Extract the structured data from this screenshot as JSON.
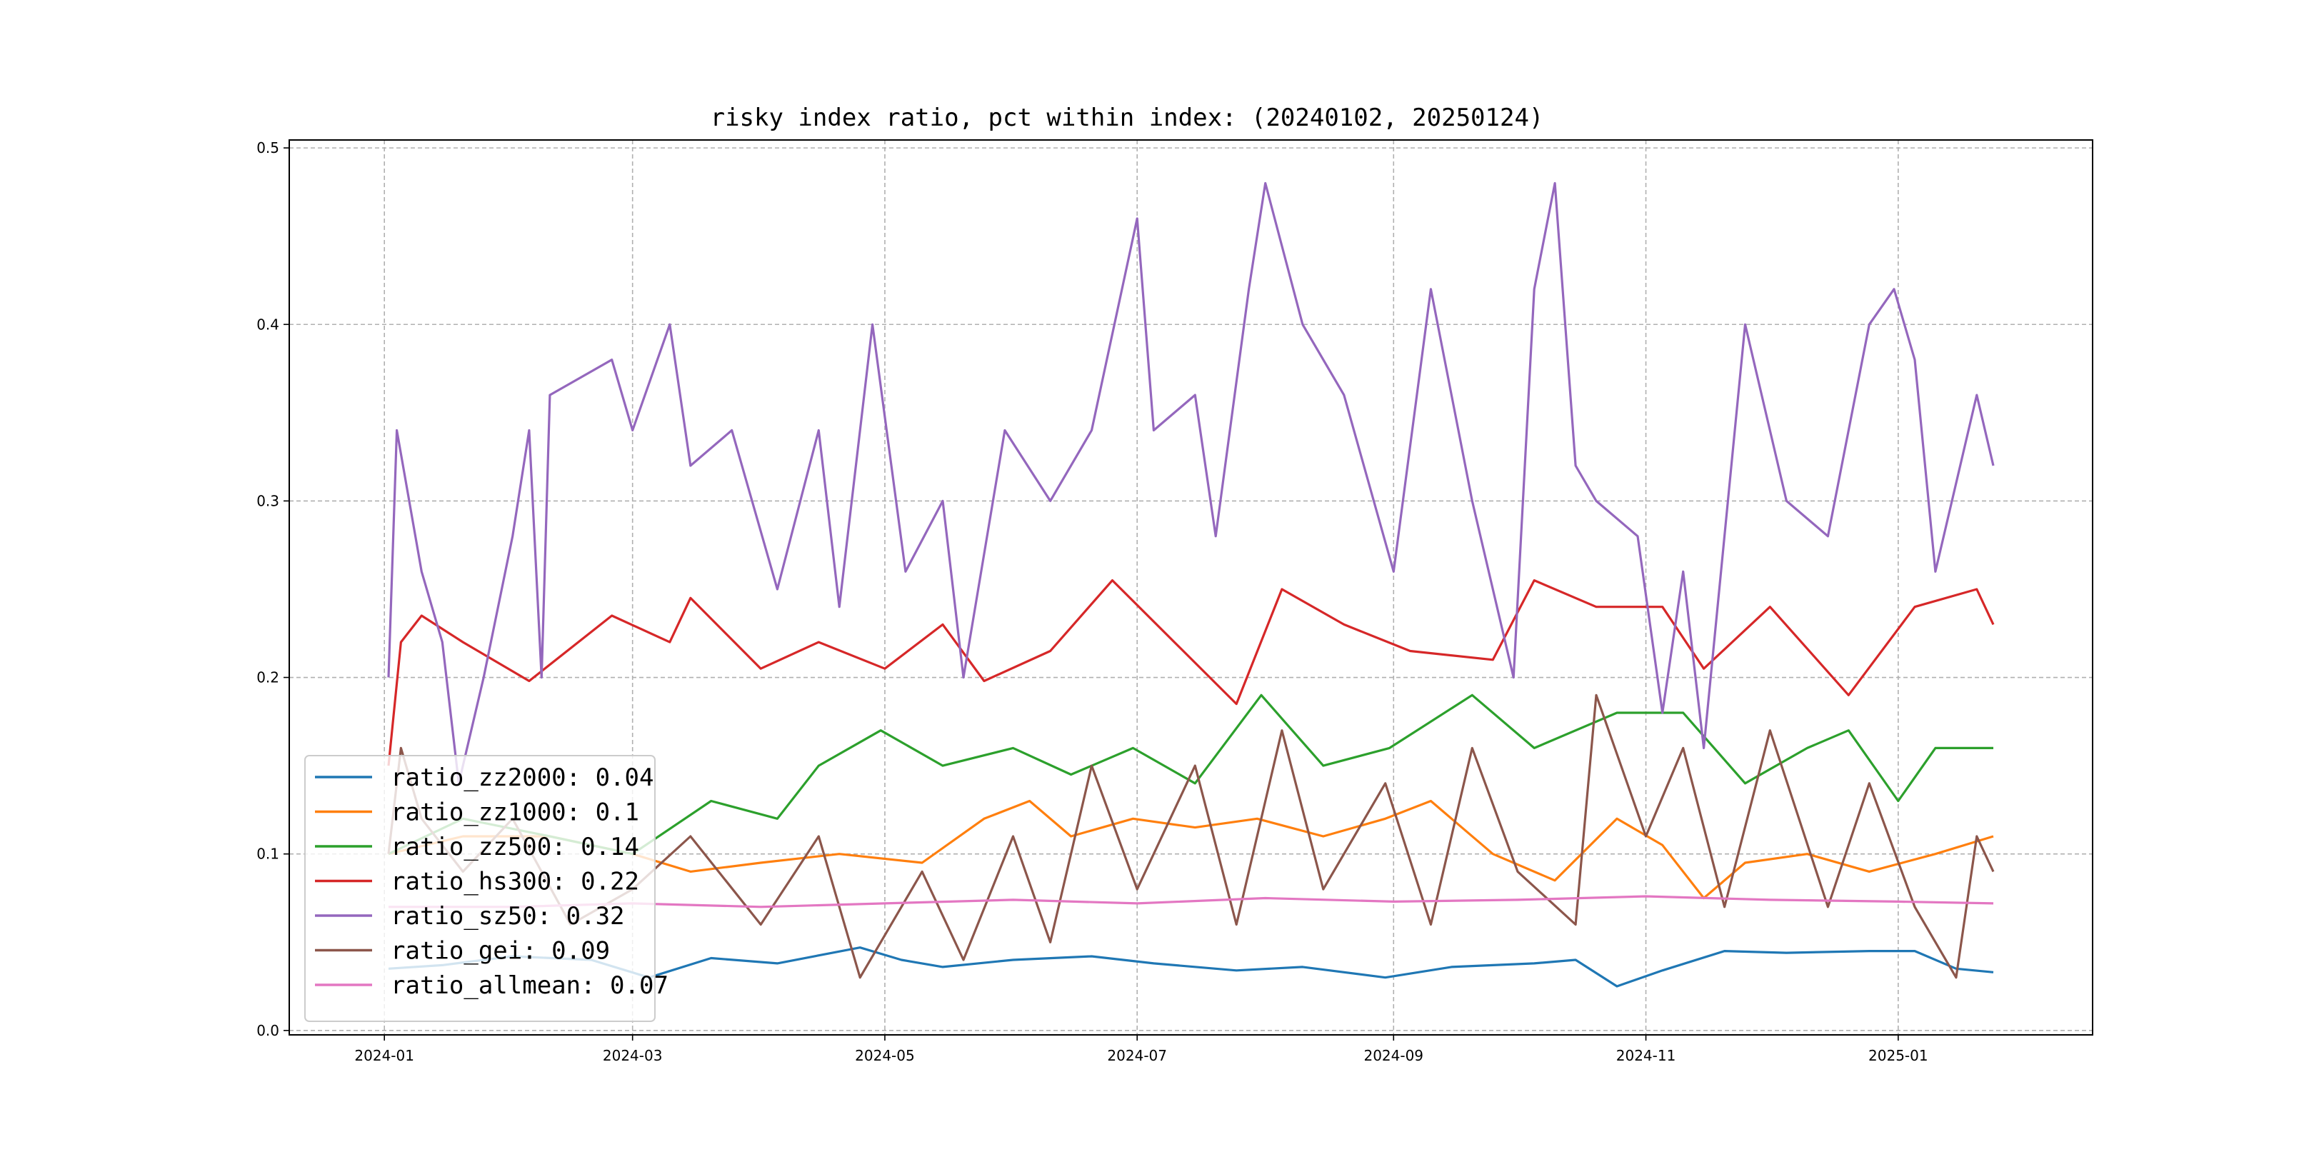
{
  "chart_data": {
    "type": "line",
    "title": "risky index ratio, pct within index: (20240102, 20250124)",
    "xlabel": "",
    "ylabel": "",
    "x_start": "2024-01-02",
    "x_end": "2025-01-24",
    "xlim": [
      "2023-12-09",
      "2025-02-17"
    ],
    "ylim": [
      -0.0025,
      0.5045
    ],
    "grid": true,
    "legend_position": "lower-left",
    "x_ticks": [
      "2024-01",
      "2024-03",
      "2024-05",
      "2024-07",
      "2024-09",
      "2024-11",
      "2025-01"
    ],
    "y_ticks": [
      "0.0",
      "0.1",
      "0.2",
      "0.3",
      "0.4",
      "0.5"
    ],
    "series": [
      {
        "name": "ratio_zz2000",
        "legend_label": "ratio_zz2000: 0.04",
        "color": "#1f77b4",
        "points": [
          [
            "2024-01-02",
            0.035
          ],
          [
            "2024-01-15",
            0.037
          ],
          [
            "2024-02-01",
            0.042
          ],
          [
            "2024-02-20",
            0.04
          ],
          [
            "2024-03-05",
            0.03
          ],
          [
            "2024-03-20",
            0.041
          ],
          [
            "2024-04-05",
            0.038
          ],
          [
            "2024-04-25",
            0.047
          ],
          [
            "2024-05-05",
            0.04
          ],
          [
            "2024-05-15",
            0.036
          ],
          [
            "2024-06-01",
            0.04
          ],
          [
            "2024-06-20",
            0.042
          ],
          [
            "2024-07-05",
            0.038
          ],
          [
            "2024-07-25",
            0.034
          ],
          [
            "2024-08-10",
            0.036
          ],
          [
            "2024-08-30",
            0.03
          ],
          [
            "2024-09-15",
            0.036
          ],
          [
            "2024-10-05",
            0.038
          ],
          [
            "2024-10-15",
            0.04
          ],
          [
            "2024-10-25",
            0.025
          ],
          [
            "2024-11-05",
            0.034
          ],
          [
            "2024-11-20",
            0.045
          ],
          [
            "2024-12-05",
            0.044
          ],
          [
            "2024-12-25",
            0.045
          ],
          [
            "2025-01-05",
            0.045
          ],
          [
            "2025-01-15",
            0.035
          ],
          [
            "2025-01-24",
            0.033
          ]
        ]
      },
      {
        "name": "ratio_zz1000",
        "legend_label": "ratio_zz1000: 0.1",
        "color": "#ff7f0e",
        "points": [
          [
            "2024-01-02",
            0.1
          ],
          [
            "2024-01-20",
            0.11
          ],
          [
            "2024-02-10",
            0.11
          ],
          [
            "2024-03-01",
            0.1
          ],
          [
            "2024-03-15",
            0.09
          ],
          [
            "2024-04-01",
            0.095
          ],
          [
            "2024-04-20",
            0.1
          ],
          [
            "2024-05-10",
            0.095
          ],
          [
            "2024-05-25",
            0.12
          ],
          [
            "2024-06-05",
            0.13
          ],
          [
            "2024-06-15",
            0.11
          ],
          [
            "2024-06-30",
            0.12
          ],
          [
            "2024-07-15",
            0.115
          ],
          [
            "2024-07-30",
            0.12
          ],
          [
            "2024-08-15",
            0.11
          ],
          [
            "2024-08-30",
            0.12
          ],
          [
            "2024-09-10",
            0.13
          ],
          [
            "2024-09-25",
            0.1
          ],
          [
            "2024-10-10",
            0.085
          ],
          [
            "2024-10-25",
            0.12
          ],
          [
            "2024-11-05",
            0.105
          ],
          [
            "2024-11-15",
            0.075
          ],
          [
            "2024-11-25",
            0.095
          ],
          [
            "2024-12-10",
            0.1
          ],
          [
            "2024-12-25",
            0.09
          ],
          [
            "2025-01-10",
            0.1
          ],
          [
            "2025-01-24",
            0.11
          ]
        ]
      },
      {
        "name": "ratio_zz500",
        "legend_label": "ratio_zz500: 0.14",
        "color": "#2ca02c",
        "points": [
          [
            "2024-01-02",
            0.1
          ],
          [
            "2024-01-20",
            0.12
          ],
          [
            "2024-02-10",
            0.11
          ],
          [
            "2024-03-01",
            0.1
          ],
          [
            "2024-03-20",
            0.13
          ],
          [
            "2024-04-05",
            0.12
          ],
          [
            "2024-04-15",
            0.15
          ],
          [
            "2024-04-30",
            0.17
          ],
          [
            "2024-05-15",
            0.15
          ],
          [
            "2024-06-01",
            0.16
          ],
          [
            "2024-06-15",
            0.145
          ],
          [
            "2024-06-30",
            0.16
          ],
          [
            "2024-07-15",
            0.14
          ],
          [
            "2024-07-31",
            0.19
          ],
          [
            "2024-08-15",
            0.15
          ],
          [
            "2024-08-31",
            0.16
          ],
          [
            "2024-09-20",
            0.19
          ],
          [
            "2024-10-05",
            0.16
          ],
          [
            "2024-10-25",
            0.18
          ],
          [
            "2024-11-10",
            0.18
          ],
          [
            "2024-11-25",
            0.14
          ],
          [
            "2024-12-10",
            0.16
          ],
          [
            "2024-12-20",
            0.17
          ],
          [
            "2025-01-01",
            0.13
          ],
          [
            "2025-01-10",
            0.16
          ],
          [
            "2025-01-24",
            0.16
          ]
        ]
      },
      {
        "name": "ratio_hs300",
        "legend_label": "ratio_hs300: 0.22",
        "color": "#d62728",
        "points": [
          [
            "2024-01-02",
            0.15
          ],
          [
            "2024-01-05",
            0.22
          ],
          [
            "2024-01-10",
            0.235
          ],
          [
            "2024-01-20",
            0.22
          ],
          [
            "2024-02-05",
            0.198
          ],
          [
            "2024-02-25",
            0.235
          ],
          [
            "2024-03-10",
            0.22
          ],
          [
            "2024-03-15",
            0.245
          ],
          [
            "2024-04-01",
            0.205
          ],
          [
            "2024-04-15",
            0.22
          ],
          [
            "2024-05-01",
            0.205
          ],
          [
            "2024-05-15",
            0.23
          ],
          [
            "2024-05-25",
            0.198
          ],
          [
            "2024-06-10",
            0.215
          ],
          [
            "2024-06-25",
            0.255
          ],
          [
            "2024-07-10",
            0.22
          ],
          [
            "2024-07-25",
            0.185
          ],
          [
            "2024-08-05",
            0.25
          ],
          [
            "2024-08-20",
            0.23
          ],
          [
            "2024-09-05",
            0.215
          ],
          [
            "2024-09-25",
            0.21
          ],
          [
            "2024-10-05",
            0.255
          ],
          [
            "2024-10-20",
            0.24
          ],
          [
            "2024-11-05",
            0.24
          ],
          [
            "2024-11-15",
            0.205
          ],
          [
            "2024-12-01",
            0.24
          ],
          [
            "2024-12-20",
            0.19
          ],
          [
            "2025-01-05",
            0.24
          ],
          [
            "2025-01-20",
            0.25
          ],
          [
            "2025-01-24",
            0.23
          ]
        ]
      },
      {
        "name": "ratio_sz50",
        "legend_label": "ratio_sz50: 0.32",
        "color": "#9467bd",
        "points": [
          [
            "2024-01-02",
            0.2
          ],
          [
            "2024-01-04",
            0.34
          ],
          [
            "2024-01-10",
            0.26
          ],
          [
            "2024-01-15",
            0.22
          ],
          [
            "2024-01-19",
            0.14
          ],
          [
            "2024-01-25",
            0.2
          ],
          [
            "2024-02-01",
            0.28
          ],
          [
            "2024-02-05",
            0.34
          ],
          [
            "2024-02-08",
            0.2
          ],
          [
            "2024-02-10",
            0.36
          ],
          [
            "2024-02-25",
            0.38
          ],
          [
            "2024-03-01",
            0.34
          ],
          [
            "2024-03-10",
            0.4
          ],
          [
            "2024-03-15",
            0.32
          ],
          [
            "2024-03-25",
            0.34
          ],
          [
            "2024-04-05",
            0.25
          ],
          [
            "2024-04-15",
            0.34
          ],
          [
            "2024-04-20",
            0.24
          ],
          [
            "2024-04-28",
            0.4
          ],
          [
            "2024-05-06",
            0.26
          ],
          [
            "2024-05-15",
            0.3
          ],
          [
            "2024-05-20",
            0.2
          ],
          [
            "2024-05-30",
            0.34
          ],
          [
            "2024-06-10",
            0.3
          ],
          [
            "2024-06-20",
            0.34
          ],
          [
            "2024-07-01",
            0.46
          ],
          [
            "2024-07-05",
            0.34
          ],
          [
            "2024-07-15",
            0.36
          ],
          [
            "2024-07-20",
            0.28
          ],
          [
            "2024-07-28",
            0.42
          ],
          [
            "2024-08-01",
            0.48
          ],
          [
            "2024-08-10",
            0.4
          ],
          [
            "2024-08-20",
            0.36
          ],
          [
            "2024-09-01",
            0.26
          ],
          [
            "2024-09-10",
            0.42
          ],
          [
            "2024-09-20",
            0.3
          ],
          [
            "2024-09-30",
            0.2
          ],
          [
            "2024-10-05",
            0.42
          ],
          [
            "2024-10-10",
            0.48
          ],
          [
            "2024-10-15",
            0.32
          ],
          [
            "2024-10-20",
            0.3
          ],
          [
            "2024-10-30",
            0.28
          ],
          [
            "2024-11-05",
            0.18
          ],
          [
            "2024-11-10",
            0.26
          ],
          [
            "2024-11-15",
            0.16
          ],
          [
            "2024-11-25",
            0.4
          ],
          [
            "2024-12-05",
            0.3
          ],
          [
            "2024-12-15",
            0.28
          ],
          [
            "2024-12-25",
            0.4
          ],
          [
            "2024-12-31",
            0.42
          ],
          [
            "2025-01-05",
            0.38
          ],
          [
            "2025-01-10",
            0.26
          ],
          [
            "2025-01-20",
            0.36
          ],
          [
            "2025-01-24",
            0.32
          ]
        ]
      },
      {
        "name": "ratio_gei",
        "legend_label": "ratio_gei: 0.09",
        "color": "#8c564b",
        "points": [
          [
            "2024-01-02",
            0.1
          ],
          [
            "2024-01-05",
            0.16
          ],
          [
            "2024-01-10",
            0.12
          ],
          [
            "2024-01-20",
            0.09
          ],
          [
            "2024-02-01",
            0.12
          ],
          [
            "2024-02-15",
            0.06
          ],
          [
            "2024-03-01",
            0.08
          ],
          [
            "2024-03-15",
            0.11
          ],
          [
            "2024-04-01",
            0.06
          ],
          [
            "2024-04-15",
            0.11
          ],
          [
            "2024-04-25",
            0.03
          ],
          [
            "2024-05-10",
            0.09
          ],
          [
            "2024-05-20",
            0.04
          ],
          [
            "2024-06-01",
            0.11
          ],
          [
            "2024-06-10",
            0.05
          ],
          [
            "2024-06-20",
            0.15
          ],
          [
            "2024-07-01",
            0.08
          ],
          [
            "2024-07-15",
            0.15
          ],
          [
            "2024-07-25",
            0.06
          ],
          [
            "2024-08-05",
            0.17
          ],
          [
            "2024-08-15",
            0.08
          ],
          [
            "2024-08-30",
            0.14
          ],
          [
            "2024-09-10",
            0.06
          ],
          [
            "2024-09-20",
            0.16
          ],
          [
            "2024-10-01",
            0.09
          ],
          [
            "2024-10-15",
            0.06
          ],
          [
            "2024-10-20",
            0.19
          ],
          [
            "2024-11-01",
            0.11
          ],
          [
            "2024-11-10",
            0.16
          ],
          [
            "2024-11-20",
            0.07
          ],
          [
            "2024-12-01",
            0.17
          ],
          [
            "2024-12-15",
            0.07
          ],
          [
            "2024-12-25",
            0.14
          ],
          [
            "2025-01-05",
            0.07
          ],
          [
            "2025-01-15",
            0.03
          ],
          [
            "2025-01-20",
            0.11
          ],
          [
            "2025-01-24",
            0.09
          ]
        ]
      },
      {
        "name": "ratio_allmean",
        "legend_label": "ratio_allmean: 0.07",
        "color": "#e377c2",
        "points": [
          [
            "2024-01-02",
            0.07
          ],
          [
            "2024-02-01",
            0.07
          ],
          [
            "2024-03-01",
            0.072
          ],
          [
            "2024-04-01",
            0.07
          ],
          [
            "2024-05-01",
            0.072
          ],
          [
            "2024-06-01",
            0.074
          ],
          [
            "2024-07-01",
            0.072
          ],
          [
            "2024-08-01",
            0.075
          ],
          [
            "2024-09-01",
            0.073
          ],
          [
            "2024-10-01",
            0.074
          ],
          [
            "2024-11-01",
            0.076
          ],
          [
            "2024-12-01",
            0.074
          ],
          [
            "2025-01-01",
            0.073
          ],
          [
            "2025-01-24",
            0.072
          ]
        ]
      }
    ]
  }
}
